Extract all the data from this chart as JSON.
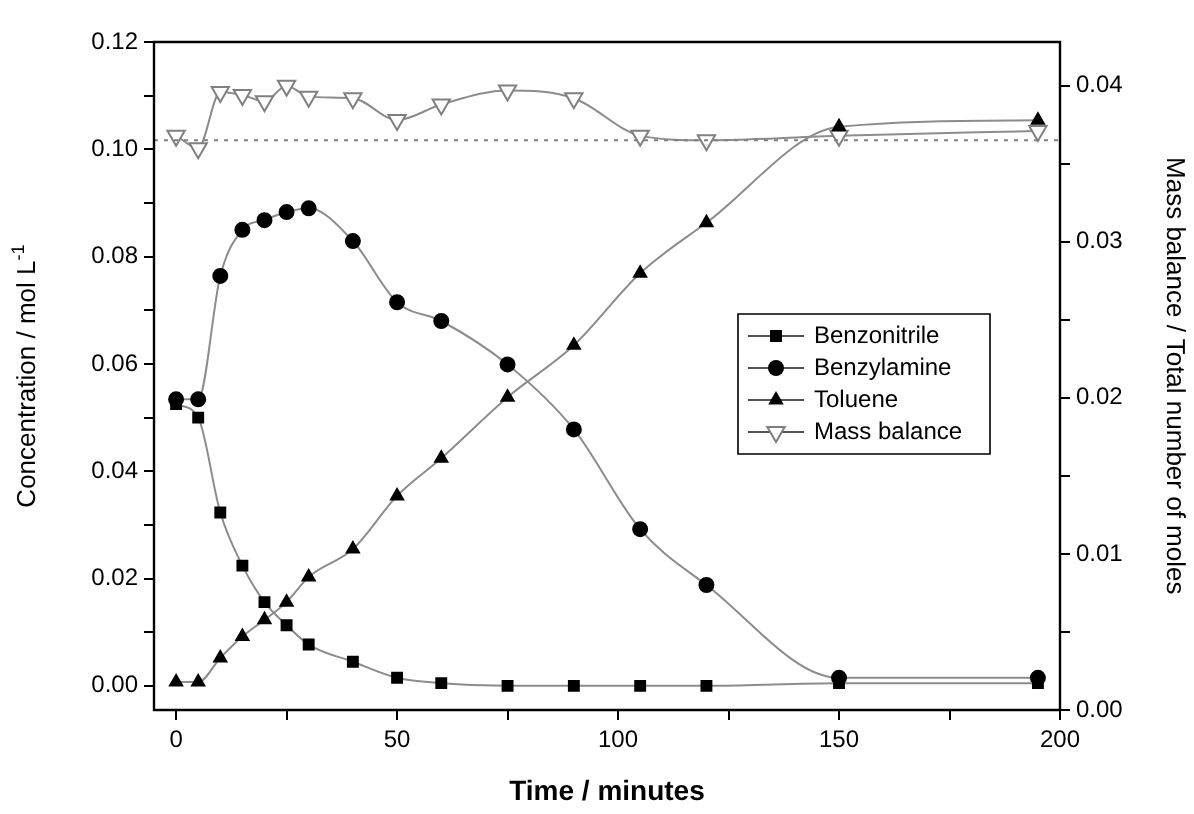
{
  "chart_data": {
    "type": "line",
    "xlabel": "Time / minutes",
    "ylabel": "Concentration / mol L$^{-1}$",
    "y2label": "Mass balance / Total number of moles",
    "xlim": [
      -5,
      200
    ],
    "xticks": [
      0,
      {
        "value": 25,
        "label": null
      },
      50,
      {
        "value": 75,
        "label": null
      },
      100,
      {
        "value": 125,
        "label": null
      },
      150,
      {
        "value": 175,
        "label": null
      },
      200
    ],
    "ylim": [
      -0.0045,
      0.12
    ],
    "yticks": [
      {
        "value": 0,
        "label": "0.00"
      },
      {
        "value": 0.01,
        "label": null
      },
      {
        "value": 0.02,
        "label": "0.02"
      },
      {
        "value": 0.03,
        "label": null
      },
      {
        "value": 0.04,
        "label": "0.04"
      },
      {
        "value": 0.05,
        "label": null
      },
      {
        "value": 0.06,
        "label": "0.06"
      },
      {
        "value": 0.07,
        "label": null
      },
      {
        "value": 0.08,
        "label": "0.08"
      },
      {
        "value": 0.09,
        "label": null
      },
      {
        "value": 0.1,
        "label": "0.10"
      },
      {
        "value": 0.11,
        "label": null
      },
      {
        "value": 0.12,
        "label": "0.12"
      }
    ],
    "y2lim": [
      0,
      0.0428
    ],
    "y2ticks": [
      {
        "value": 0,
        "label": "0.00"
      },
      {
        "value": 0.005,
        "label": null
      },
      {
        "value": 0.01,
        "label": "0.01"
      },
      {
        "value": 0.015,
        "label": null
      },
      {
        "value": 0.02,
        "label": "0.02"
      },
      {
        "value": 0.025,
        "label": null
      },
      {
        "value": 0.03,
        "label": "0.03"
      },
      {
        "value": 0.035,
        "label": null
      },
      {
        "value": 0.04,
        "label": "0.04"
      }
    ],
    "x": [
      0,
      5,
      10,
      15,
      20,
      25,
      30,
      40,
      50,
      60,
      75,
      90,
      105,
      120,
      150,
      195
    ],
    "series": [
      {
        "name": "Benzonitrile",
        "color": "#000000",
        "marker": "square",
        "values": [
          0.0525,
          0.05,
          0.0323,
          0.0224,
          0.0156,
          0.0113,
          0.0077,
          0.0045,
          0.0015,
          0.0005,
          0,
          0,
          0,
          0,
          0.0005,
          0.0005
        ]
      },
      {
        "name": "Benzylamine",
        "color": "#000000",
        "marker": "circle",
        "values": [
          0.0534,
          0.0534,
          0.0764,
          0.085,
          0.0868,
          0.0883,
          0.089,
          0.0829,
          0.0715,
          0.068,
          0.0599,
          0.0478,
          0.0292,
          0.0188,
          0.0015,
          0.0015
        ]
      },
      {
        "name": "Toluene",
        "color": "#000000",
        "marker": "triangle",
        "values": [
          0.0007,
          0.0007,
          0.0052,
          0.0092,
          0.0123,
          0.0156,
          0.0203,
          0.0255,
          0.0354,
          0.0424,
          0.0538,
          0.0635,
          0.0769,
          0.0863,
          0.1042,
          0.1054
        ]
      },
      {
        "name": "Mass balance",
        "color": "#808080",
        "marker": "triangle_down",
        "axis": "y2",
        "values": [
          0.0368,
          0.036,
          0.0396,
          0.0394,
          0.039,
          0.04,
          0.0393,
          0.0392,
          0.0378,
          0.0388,
          0.0397,
          0.0392,
          0.0368,
          0.0365,
          0.0368,
          0.0371
        ]
      }
    ],
    "ref_lines": [
      {
        "axis": "y2",
        "value": 0.0365,
        "color": "#808080",
        "line_style": "dotted"
      }
    ],
    "legend": "right",
    "grid": false
  }
}
